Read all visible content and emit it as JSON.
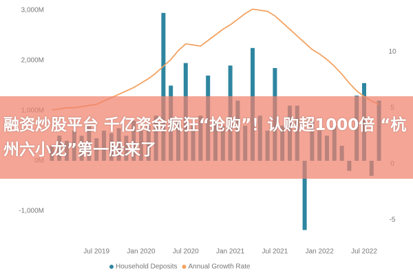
{
  "chart_data": {
    "type": "bar_line",
    "annotation": "融资炒股平台 千亿资金疯狂“抢购”！认购超1000倍 “杭州六小龙”第一股来了",
    "categories": [
      null,
      null,
      null,
      null,
      null,
      null,
      "Jul 2019",
      null,
      null,
      null,
      null,
      null,
      "Jan 2020",
      null,
      null,
      null,
      null,
      null,
      "Jul 2020",
      null,
      null,
      null,
      null,
      null,
      "Jan 2021",
      null,
      null,
      null,
      null,
      null,
      "Jul 2021",
      null,
      null,
      null,
      null,
      null,
      "Jan 2022",
      null,
      null,
      null,
      null,
      null,
      "Jul 2022",
      null,
      null
    ],
    "series": [
      {
        "name": "Household Deposits",
        "color": "#2e86a0",
        "type": "bar",
        "values": [
          300,
          500,
          400,
          600,
          500,
          700,
          450,
          600,
          550,
          650,
          500,
          800,
          600,
          700,
          900,
          2950,
          1500,
          800,
          1950,
          700,
          900,
          1700,
          800,
          700,
          1900,
          1200,
          700,
          2250,
          900,
          600,
          1850,
          700,
          1100,
          1100,
          -1380,
          800,
          600,
          500,
          700,
          300,
          -200,
          1300,
          1550,
          -300,
          1200
        ]
      },
      {
        "name": "Annual Growth Rate",
        "color": "#f4a261",
        "type": "line",
        "axis": "y2",
        "values": [
          4.8,
          4.9,
          5,
          5,
          5.1,
          5.2,
          5.3,
          5.6,
          5.9,
          6.2,
          6.5,
          6.8,
          7.2,
          7.6,
          8.1,
          8.7,
          9.3,
          10.1,
          10.7,
          10.6,
          10.5,
          11.0,
          11.5,
          12.0,
          12.4,
          12.9,
          13.4,
          13.8,
          13.7,
          13.6,
          13.2,
          12.6,
          12.0,
          11.4,
          10.8,
          10.2,
          9.8,
          9.3,
          8.7,
          8.0,
          7.2,
          6.5,
          6.0,
          5.6,
          5.3
        ]
      }
    ],
    "ylim": [
      -1400,
      3070
    ],
    "yticks": [
      {
        "value": -1000,
        "label": "-1,000M"
      },
      {
        "value": 0,
        "label": "0M"
      },
      {
        "value": 1000,
        "label": "1,000M"
      },
      {
        "value": 2000,
        "label": "2,000M"
      },
      {
        "value": 3000,
        "label": "3,000M"
      }
    ],
    "y2lim": [
      -6,
      14
    ],
    "y2ticks": [
      -5,
      0,
      5,
      10
    ],
    "grid": false,
    "legend": "bottom"
  }
}
